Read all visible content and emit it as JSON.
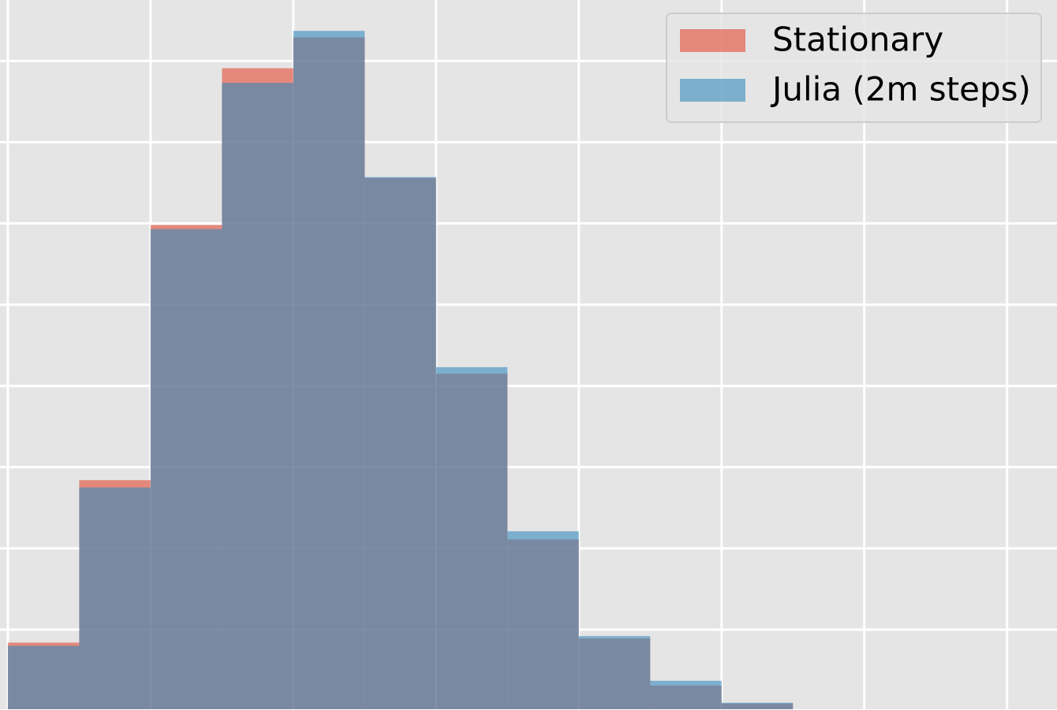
{
  "chart_data": {
    "type": "histogram",
    "bins": [
      0,
      0.5,
      1,
      1.5,
      2,
      2.5,
      3,
      3.5,
      4,
      4.5,
      5,
      5.5
    ],
    "series": [
      {
        "name": "Stationary",
        "color": "#E24A33",
        "values": [
          0.84,
          2.84,
          5.98,
          7.91,
          8.29,
          6.56,
          4.15,
          2.11,
          0.89,
          0.31,
          0.09
        ]
      },
      {
        "name": "Julia (2m steps)",
        "color": "#348ABD",
        "values": [
          0.8,
          2.75,
          5.93,
          7.73,
          8.37,
          6.57,
          4.23,
          2.21,
          0.92,
          0.37,
          0.1
        ]
      }
    ],
    "xlim": [
      -0.055,
      7.35
    ],
    "xticks": [
      0,
      1,
      2,
      3,
      4,
      5,
      6,
      7
    ],
    "ylim": [
      0.02,
      8.75
    ],
    "yticks": [
      1,
      2,
      3,
      4,
      5,
      6,
      7,
      8
    ],
    "grid": true,
    "legend": "upper right"
  }
}
